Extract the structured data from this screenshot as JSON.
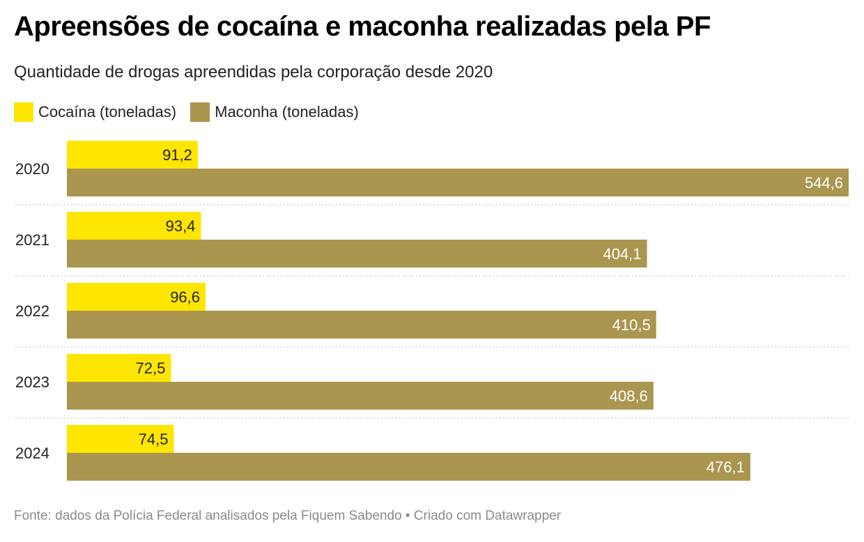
{
  "header": {
    "title": "Apreensões de cocaína e maconha realizadas pela PF",
    "subtitle": "Quantidade de drogas apreendidas pela corporação desde 2020"
  },
  "legend": [
    {
      "label": "Cocaína (toneladas)",
      "color": "#ffe600"
    },
    {
      "label": "Maconha (toneladas)",
      "color": "#ab964f"
    }
  ],
  "chart_data": {
    "type": "bar",
    "orientation": "horizontal",
    "title": "Apreensões de cocaína e maconha realizadas pela PF",
    "subtitle": "Quantidade de drogas apreendidas pela corporação desde 2020",
    "categories": [
      "2020",
      "2021",
      "2022",
      "2023",
      "2024"
    ],
    "series": [
      {
        "name": "Cocaína (toneladas)",
        "color": "#ffe600",
        "values": [
          91.2,
          93.4,
          96.6,
          72.5,
          74.5
        ],
        "labels": [
          "91,2",
          "93,4",
          "96,6",
          "72,5",
          "74,5"
        ],
        "label_color": "#222222"
      },
      {
        "name": "Maconha (toneladas)",
        "color": "#ab964f",
        "values": [
          544.6,
          404.1,
          410.5,
          408.6,
          476.1
        ],
        "labels": [
          "544,6",
          "404,1",
          "410,5",
          "408,6",
          "476,1"
        ],
        "label_color": "#ffffff"
      }
    ],
    "xlim": [
      0,
      544.6
    ],
    "grid": false,
    "separators": true
  },
  "footer": {
    "source": "Fonte: dados da Polícia Federal analisados pela Fiquem Sabendo • Criado com Datawrapper"
  }
}
